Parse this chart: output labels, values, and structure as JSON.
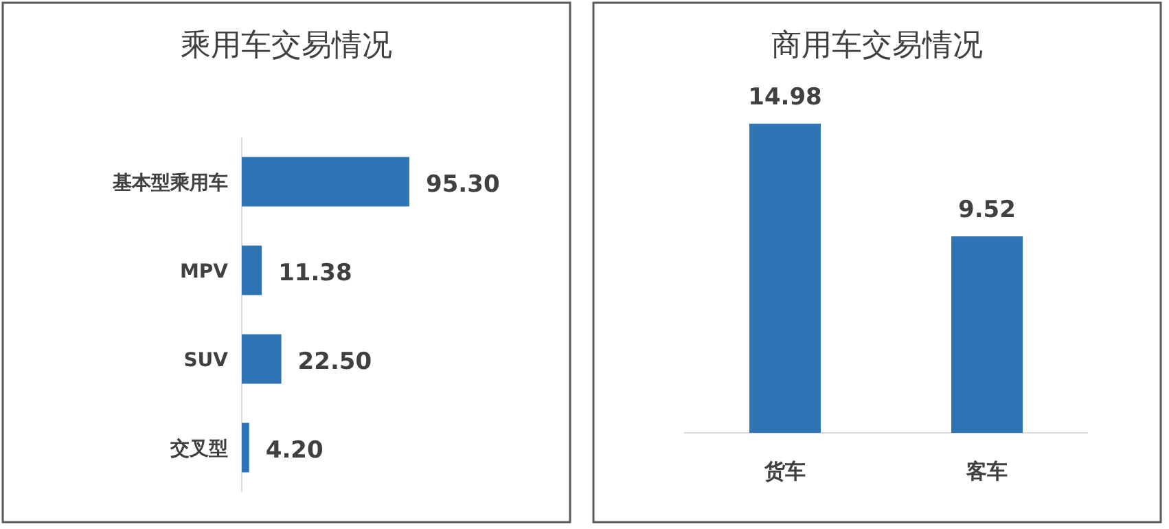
{
  "chart_data": [
    {
      "type": "bar",
      "orientation": "horizontal",
      "title": "乘用车交易情况",
      "categories": [
        "基本型乘用车",
        "MPV",
        "SUV",
        "交叉型"
      ],
      "values": [
        95.3,
        11.38,
        22.5,
        4.2
      ],
      "value_labels": [
        "95.30",
        "11.38",
        "22.50",
        "4.20"
      ],
      "color": "#2e75b6"
    },
    {
      "type": "bar",
      "title": "商用车交易情况",
      "categories": [
        "货车",
        "客车"
      ],
      "values": [
        14.98,
        9.52
      ],
      "value_labels": [
        "14.98",
        "9.52"
      ],
      "color": "#2e75b6"
    }
  ]
}
